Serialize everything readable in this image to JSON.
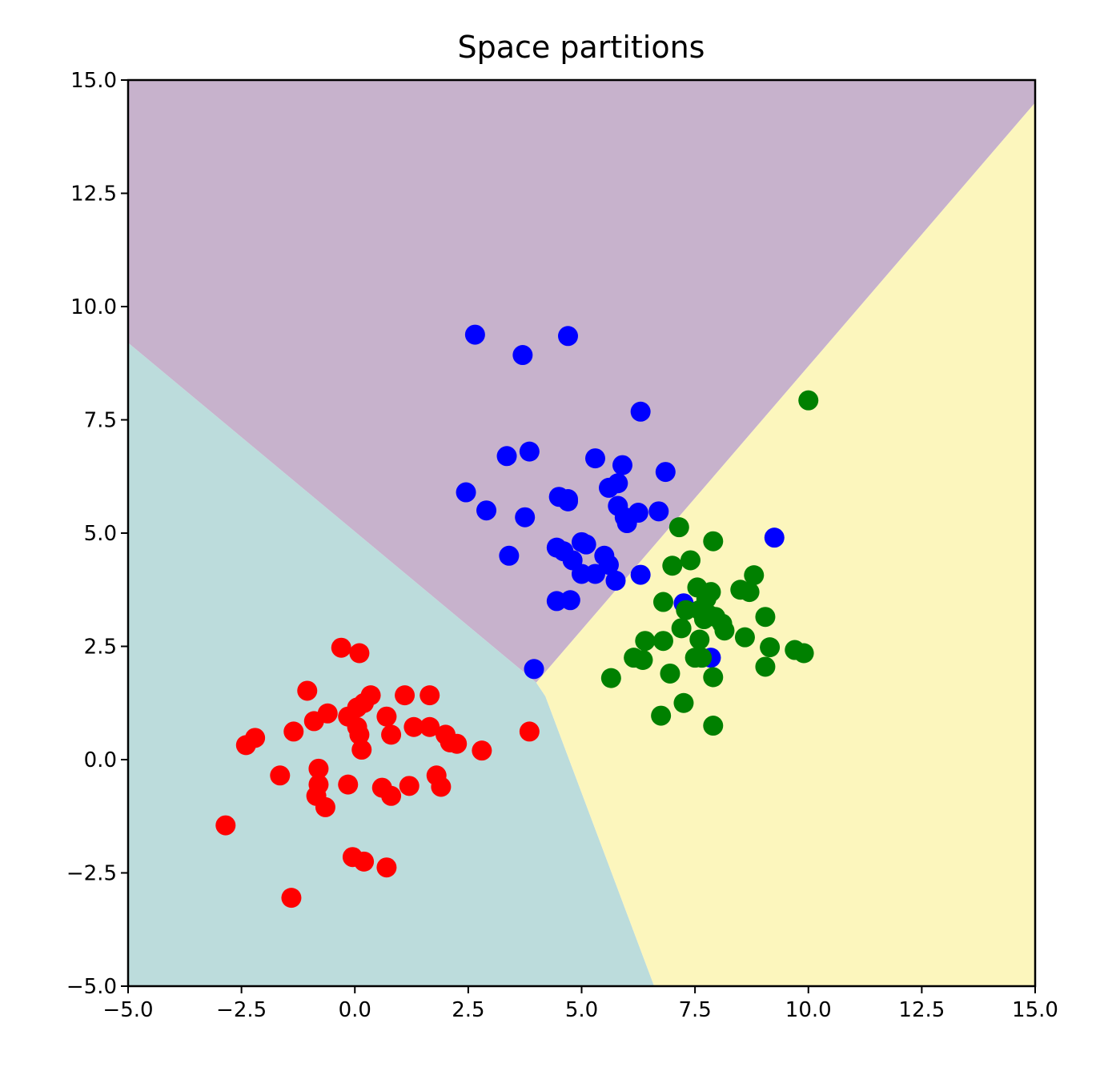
{
  "chart_data": {
    "type": "scatter",
    "title": "Space partitions",
    "xlabel": "",
    "ylabel": "",
    "xlim": [
      -5,
      15
    ],
    "ylim": [
      -5,
      15
    ],
    "grid": false,
    "x_ticks": [
      "−5.0",
      "−2.5",
      "0.0",
      "2.5",
      "5.0",
      "7.5",
      "10.0",
      "12.5",
      "15.0"
    ],
    "y_ticks": [
      "−5.0",
      "−2.5",
      "0.0",
      "2.5",
      "5.0",
      "7.5",
      "10.0",
      "12.5",
      "15.0"
    ],
    "regions": [
      {
        "color": "#c7b2cc",
        "polygon": [
          [
            -5,
            15
          ],
          [
            15,
            15
          ],
          [
            15,
            14.5
          ],
          [
            4,
            1.7
          ],
          [
            -5,
            9.2
          ]
        ]
      },
      {
        "color": "#bcdcdc",
        "polygon": [
          [
            -5,
            9.2
          ],
          [
            4,
            1.7
          ],
          [
            4.2,
            1.4
          ],
          [
            6.6,
            -5
          ],
          [
            -5,
            -5
          ]
        ]
      },
      {
        "color": "#fcf6bd",
        "polygon": [
          [
            15,
            14.5
          ],
          [
            15,
            -5
          ],
          [
            6.6,
            -5
          ],
          [
            4.2,
            1.4
          ],
          [
            4,
            1.7
          ]
        ]
      }
    ],
    "series": [
      {
        "color": "#ff0000",
        "points": [
          [
            -2.85,
            -1.45
          ],
          [
            -2.4,
            0.32
          ],
          [
            -2.2,
            0.48
          ],
          [
            -1.65,
            -0.35
          ],
          [
            -1.4,
            -3.05
          ],
          [
            -1.35,
            0.62
          ],
          [
            -1.05,
            1.52
          ],
          [
            -0.9,
            0.85
          ],
          [
            -0.85,
            -0.8
          ],
          [
            -0.8,
            -0.2
          ],
          [
            -0.8,
            -0.55
          ],
          [
            -0.65,
            -1.05
          ],
          [
            -0.6,
            1.02
          ],
          [
            -0.3,
            2.47
          ],
          [
            -0.15,
            0.95
          ],
          [
            -0.15,
            -0.55
          ],
          [
            -0.05,
            -2.15
          ],
          [
            0.05,
            0.72
          ],
          [
            0.05,
            1.15
          ],
          [
            0.1,
            2.35
          ],
          [
            0.1,
            0.55
          ],
          [
            0.15,
            0.22
          ],
          [
            0.2,
            1.25
          ],
          [
            0.2,
            -2.25
          ],
          [
            0.35,
            1.42
          ],
          [
            0.6,
            -0.62
          ],
          [
            0.7,
            0.95
          ],
          [
            0.7,
            -2.38
          ],
          [
            0.8,
            0.55
          ],
          [
            0.8,
            -0.8
          ],
          [
            1.1,
            1.42
          ],
          [
            1.2,
            -0.58
          ],
          [
            1.3,
            0.72
          ],
          [
            1.65,
            1.42
          ],
          [
            1.65,
            0.72
          ],
          [
            1.8,
            -0.35
          ],
          [
            1.9,
            -0.6
          ],
          [
            2.0,
            0.55
          ],
          [
            2.1,
            0.38
          ],
          [
            2.25,
            0.35
          ],
          [
            2.8,
            0.2
          ],
          [
            3.85,
            0.62
          ]
        ]
      },
      {
        "color": "#0000ff",
        "points": [
          [
            2.65,
            9.38
          ],
          [
            3.7,
            8.93
          ],
          [
            4.7,
            9.35
          ],
          [
            3.35,
            6.7
          ],
          [
            3.85,
            6.8
          ],
          [
            2.45,
            5.9
          ],
          [
            2.9,
            5.5
          ],
          [
            3.75,
            5.35
          ],
          [
            3.4,
            4.5
          ],
          [
            3.95,
            2.0
          ],
          [
            4.5,
            5.8
          ],
          [
            4.7,
            5.75
          ],
          [
            4.7,
            5.7
          ],
          [
            4.45,
            4.68
          ],
          [
            4.6,
            4.6
          ],
          [
            4.8,
            4.4
          ],
          [
            5.0,
            4.1
          ],
          [
            5.0,
            4.8
          ],
          [
            5.1,
            4.75
          ],
          [
            5.3,
            4.1
          ],
          [
            5.5,
            4.5
          ],
          [
            5.6,
            4.3
          ],
          [
            5.75,
            3.95
          ],
          [
            4.45,
            3.5
          ],
          [
            4.75,
            3.52
          ],
          [
            5.3,
            6.65
          ],
          [
            5.6,
            6.0
          ],
          [
            5.8,
            6.1
          ],
          [
            5.9,
            6.5
          ],
          [
            5.8,
            5.6
          ],
          [
            5.95,
            5.35
          ],
          [
            6.0,
            5.22
          ],
          [
            6.25,
            5.45
          ],
          [
            6.3,
            7.68
          ],
          [
            6.7,
            5.48
          ],
          [
            6.85,
            6.35
          ],
          [
            6.3,
            4.08
          ],
          [
            7.25,
            3.45
          ],
          [
            7.85,
            2.25
          ],
          [
            9.25,
            4.9
          ]
        ]
      },
      {
        "color": "#008000",
        "points": [
          [
            10.0,
            7.93
          ],
          [
            7.15,
            5.13
          ],
          [
            7.9,
            4.82
          ],
          [
            7.4,
            4.4
          ],
          [
            7.0,
            4.28
          ],
          [
            8.8,
            4.07
          ],
          [
            7.55,
            3.8
          ],
          [
            8.5,
            3.75
          ],
          [
            8.7,
            3.7
          ],
          [
            7.85,
            3.7
          ],
          [
            7.75,
            3.55
          ],
          [
            6.8,
            3.48
          ],
          [
            7.3,
            3.3
          ],
          [
            7.6,
            3.3
          ],
          [
            7.8,
            3.2
          ],
          [
            7.95,
            3.15
          ],
          [
            7.7,
            3.1
          ],
          [
            9.05,
            3.15
          ],
          [
            8.1,
            3.0
          ],
          [
            7.2,
            2.9
          ],
          [
            8.15,
            2.85
          ],
          [
            6.4,
            2.62
          ],
          [
            6.8,
            2.62
          ],
          [
            7.6,
            2.65
          ],
          [
            8.6,
            2.7
          ],
          [
            9.15,
            2.48
          ],
          [
            9.7,
            2.42
          ],
          [
            9.9,
            2.35
          ],
          [
            6.15,
            2.25
          ],
          [
            6.35,
            2.2
          ],
          [
            7.5,
            2.25
          ],
          [
            7.65,
            2.25
          ],
          [
            9.05,
            2.05
          ],
          [
            6.95,
            1.9
          ],
          [
            7.9,
            1.82
          ],
          [
            5.65,
            1.8
          ],
          [
            7.25,
            1.25
          ],
          [
            6.75,
            0.97
          ],
          [
            7.9,
            0.75
          ]
        ]
      }
    ]
  }
}
